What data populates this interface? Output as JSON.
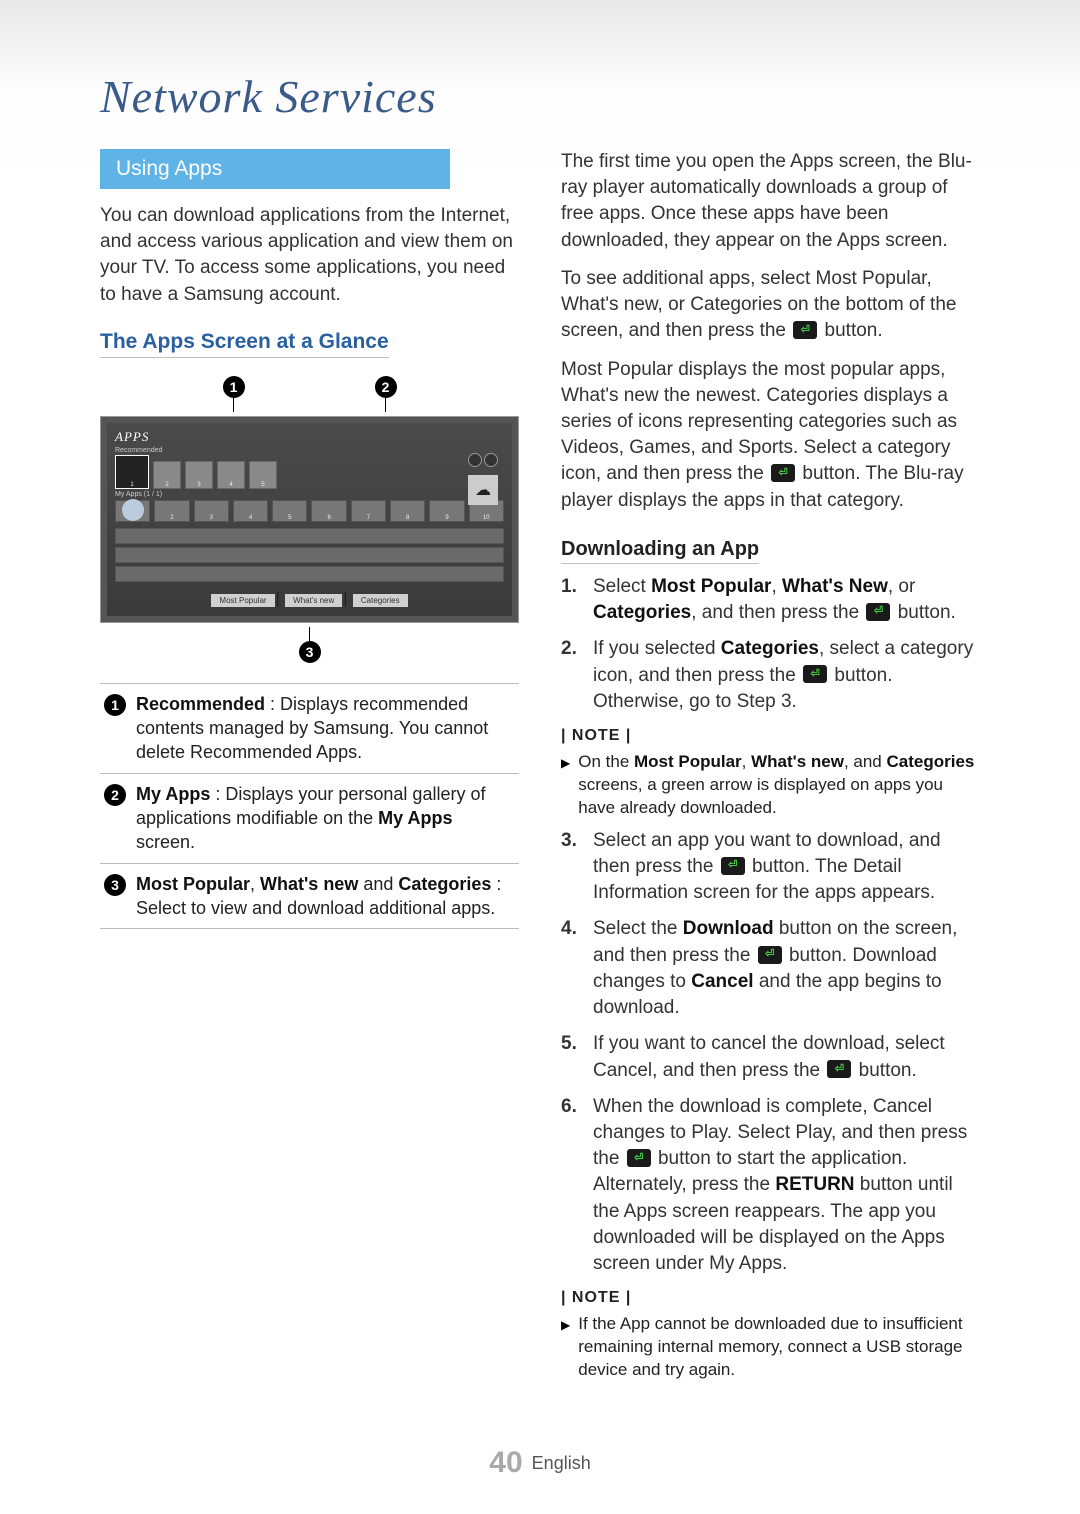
{
  "title": "Network Services",
  "section_tab": "Using Apps",
  "intro_para": "You can download applications from the Internet, and access various application and view them on your TV. To access some applications, you need to have a Samsung account.",
  "sub_head_glance": "The Apps Screen at a Glance",
  "callouts": {
    "c1": "1",
    "c2": "2",
    "c3": "3"
  },
  "shot": {
    "apps_label": "APPS",
    "row1_label": "Recommended",
    "row2_label": "My Apps (1 / 1)",
    "row1_nums": [
      "1",
      "2",
      "3",
      "4",
      "5"
    ],
    "row2_labels": [
      "WebBrowser",
      "2",
      "3",
      "4",
      "5",
      "6",
      "7",
      "8",
      "9",
      "10"
    ],
    "footer_btns": [
      "Most Popular",
      "What's new",
      "Categories"
    ]
  },
  "legend": {
    "r1_bold": "Recommended",
    "r1_rest": " : Displays recommended contents managed by Samsung. You cannot delete Recommended Apps.",
    "r2_bold": "My Apps",
    "r2_mid": " : Displays your personal gallery of applications modifiable on the ",
    "r2_bold2": "My Apps",
    "r2_end": " screen.",
    "r3_bold": "Most Popular",
    "r3_sep1": ", ",
    "r3_bold2": "What's new",
    "r3_sep2": " and ",
    "r3_bold3": "Categories",
    "r3_end": " : Select to view and download additional apps."
  },
  "right": {
    "p1": "The first time you open the Apps screen, the Blu-ray player automatically downloads  a group of free apps. Once these apps have been downloaded, they appear on the Apps screen.",
    "p2a": "To see additional apps, select Most Popular, What's new, or Categories on the bottom of the screen, and then press the ",
    "p2b": " button.",
    "p3a": "Most Popular displays the most popular apps, What's new the newest. Categories displays a series of icons representing categories such as Videos, Games, and Sports. Select a category icon, and then press the ",
    "p3b": " button. The Blu-ray player displays the apps in that category.",
    "sub_download": "Downloading an App",
    "s1_num": "1.",
    "s1_a": "Select ",
    "s1_b1": "Most Popular",
    "s1_s1": ", ",
    "s1_b2": "What's New",
    "s1_s2": ", or ",
    "s1_b3": "Categories",
    "s1_c": ", and then press the ",
    "s1_d": " button.",
    "s2_num": "2.",
    "s2_a": "If you selected ",
    "s2_b1": "Categories",
    "s2_c": ", select a category icon, and then press the ",
    "s2_d": " button. Otherwise, go to Step 3.",
    "note_lbl": "| NOTE |",
    "n1_a": "On the ",
    "n1_b1": "Most Popular",
    "n1_s1": ", ",
    "n1_b2": "What's new",
    "n1_s2": ", and ",
    "n1_b3": "Categories",
    "n1_c": " screens, a green arrow is displayed on apps you have already downloaded.",
    "s3_num": "3.",
    "s3_a": "Select an app you want to download, and then press the ",
    "s3_b": " button. The Detail Information screen for the apps appears.",
    "s4_num": "4.",
    "s4_a": "Select the ",
    "s4_b1": "Download",
    "s4_c": " button on the screen, and then press the ",
    "s4_d": " button. Download changes to ",
    "s4_b2": "Cancel",
    "s4_e": " and the app begins to download.",
    "s5_num": "5.",
    "s5_a": "If you want to cancel the download, select Cancel, and then press the ",
    "s5_b": " button.",
    "s6_num": "6.",
    "s6_a": "When the download is complete, Cancel changes to Play. Select Play, and then press the ",
    "s6_b": " button to start the application. Alternately, press the ",
    "s6_b1": "RETURN",
    "s6_c": " button until the Apps screen reappears. The app you downloaded will be displayed on the Apps screen under My Apps.",
    "n2": "If the App cannot be downloaded due to insufficient remaining internal memory, connect a USB storage device and try again."
  },
  "footer": {
    "page_num": "40",
    "lang": "English"
  },
  "colors": {
    "title": "#3a5a8a",
    "tab_bg": "#5fb3e6",
    "subhead": "#2a5fa0",
    "enter_bg": "#1a1a1a",
    "enter_fg": "#44cc44"
  }
}
